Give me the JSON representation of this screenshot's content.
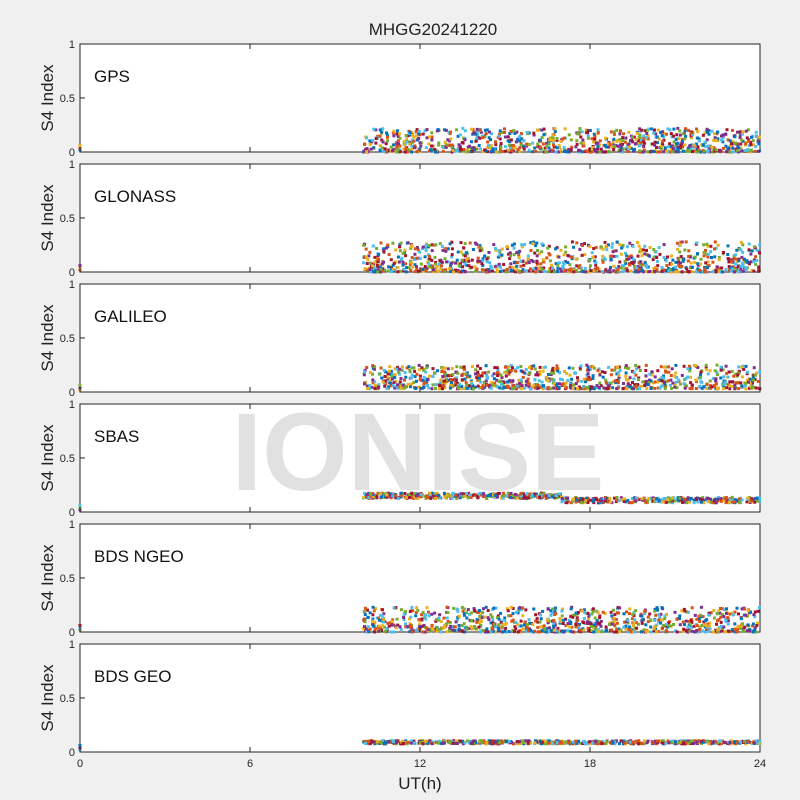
{
  "chart_data": {
    "type": "scatter",
    "title": "MHGG20241220",
    "xlabel": "UT(h)",
    "ylabel": "S4 Index",
    "xlim": [
      0,
      24
    ],
    "ylim": [
      0,
      1
    ],
    "xticks": [
      "0",
      "6",
      "12",
      "18",
      "24"
    ],
    "xtick_values": [
      0,
      6,
      12,
      18,
      24
    ],
    "yticks": [
      "0",
      "0.5",
      "1"
    ],
    "ytick_values": [
      0,
      0.5,
      1
    ],
    "grid": false,
    "watermark": "IONISE",
    "palette": [
      "#0072bd",
      "#d95319",
      "#edb120",
      "#7e2f8e",
      "#77ac30",
      "#4dbeee",
      "#a2142f"
    ],
    "panels": [
      {
        "label": "GPS",
        "data_start_h": 10,
        "data_end_h": 24,
        "s4_min": 0.0,
        "s4_max": 0.22
      },
      {
        "label": "GLONASS",
        "data_start_h": 10,
        "data_end_h": 24,
        "s4_min": 0.0,
        "s4_max": 0.28
      },
      {
        "label": "GALILEO",
        "data_start_h": 10,
        "data_end_h": 24,
        "s4_min": 0.03,
        "s4_max": 0.25
      },
      {
        "label": "SBAS",
        "data_start_h": 10,
        "data_end_h": 24,
        "s4_min": 0.07,
        "s4_max": 0.2
      },
      {
        "label": "BDS NGEO",
        "data_start_h": 10,
        "data_end_h": 24,
        "s4_min": 0.0,
        "s4_max": 0.23
      },
      {
        "label": "BDS GEO",
        "data_start_h": 10,
        "data_end_h": 24,
        "s4_min": 0.05,
        "s4_max": 0.15
      }
    ]
  }
}
